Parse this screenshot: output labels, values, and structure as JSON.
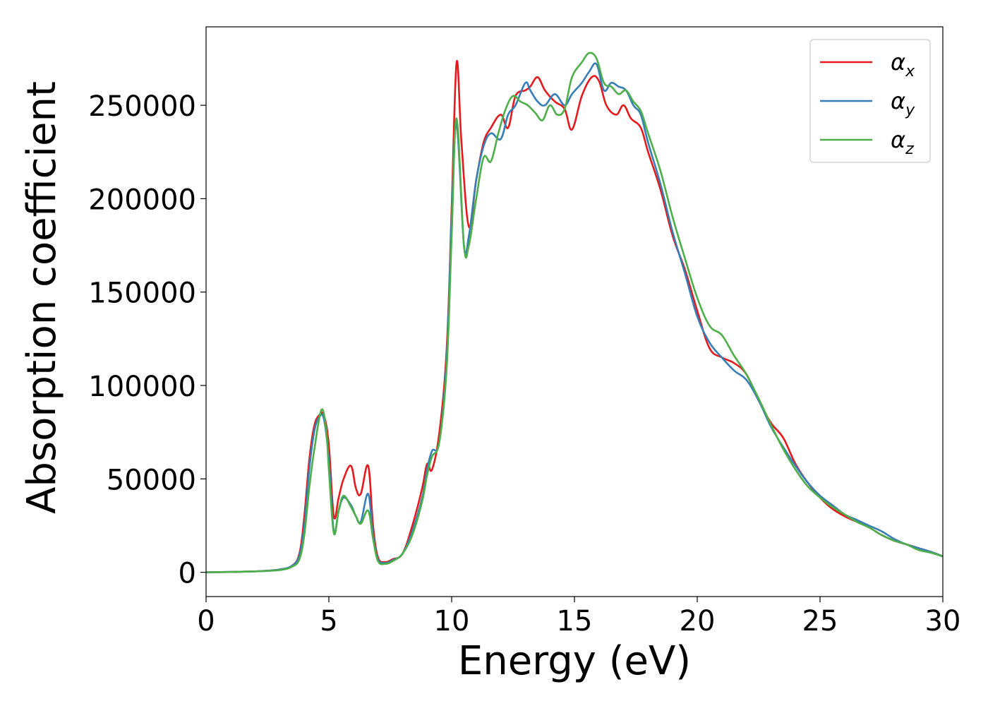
{
  "chart_data": {
    "type": "line",
    "title": "",
    "xlabel": "Energy (eV)",
    "ylabel": "Absorption coefficient",
    "xlim": [
      0,
      30
    ],
    "ylim": [
      -13000,
      292000
    ],
    "xticks": [
      0,
      5,
      10,
      15,
      20,
      25,
      30
    ],
    "xtick_labels": [
      "0",
      "5",
      "10",
      "15",
      "20",
      "25",
      "30"
    ],
    "yticks": [
      0,
      50000,
      100000,
      150000,
      200000,
      250000
    ],
    "ytick_labels": [
      "0",
      "50000",
      "100000",
      "150000",
      "200000",
      "250000"
    ],
    "grid": false,
    "legend_position": "top-right",
    "series": [
      {
        "name": "α_x",
        "label_main": "α",
        "label_sub": "x",
        "color": "#e41a1c",
        "x": [
          0,
          2,
          3,
          3.5,
          3.8,
          4.0,
          4.2,
          4.4,
          4.6,
          4.8,
          5.0,
          5.2,
          5.4,
          5.6,
          5.9,
          6.1,
          6.3,
          6.6,
          6.8,
          7.0,
          7.3,
          7.6,
          8.0,
          8.4,
          8.8,
          9.0,
          9.2,
          9.5,
          9.8,
          10.0,
          10.2,
          10.4,
          10.7,
          11.0,
          11.3,
          11.6,
          12.0,
          12.3,
          12.6,
          13.0,
          13.2,
          13.5,
          13.8,
          14.2,
          14.6,
          14.9,
          15.3,
          15.7,
          16.0,
          16.3,
          16.7,
          17.0,
          17.3,
          17.7,
          18.0,
          18.5,
          19.0,
          19.5,
          20.0,
          20.5,
          21.0,
          21.5,
          22.0,
          22.5,
          23.0,
          23.5,
          24.0,
          24.5,
          25.0,
          25.5,
          26.0,
          26.5,
          27.0,
          27.5,
          28.0,
          28.5,
          29.0,
          29.5,
          30.0
        ],
        "y": [
          0,
          500,
          1500,
          3500,
          10000,
          30000,
          60000,
          78000,
          84000,
          84000,
          68000,
          30000,
          40000,
          50000,
          57000,
          45000,
          42000,
          57000,
          25000,
          8000,
          5500,
          7000,
          10000,
          25000,
          45000,
          58000,
          55000,
          75000,
          120000,
          195000,
          273000,
          230000,
          185000,
          210000,
          230000,
          238000,
          245000,
          238000,
          255000,
          258000,
          260000,
          265000,
          258000,
          252000,
          248000,
          237000,
          255000,
          265000,
          263000,
          250000,
          245000,
          250000,
          243000,
          238000,
          225000,
          205000,
          180000,
          162000,
          140000,
          120000,
          115000,
          112000,
          106000,
          92000,
          80000,
          72000,
          58000,
          48000,
          40000,
          34000,
          30000,
          27000,
          24000,
          20000,
          17000,
          15000,
          13000,
          11000,
          8500
        ]
      },
      {
        "name": "α_y",
        "label_main": "α",
        "label_sub": "y",
        "color": "#377eb8",
        "x": [
          0,
          2,
          3,
          3.5,
          3.8,
          4.0,
          4.2,
          4.4,
          4.6,
          4.8,
          5.0,
          5.2,
          5.4,
          5.6,
          5.9,
          6.1,
          6.3,
          6.6,
          6.8,
          7.0,
          7.3,
          7.6,
          8.0,
          8.4,
          8.8,
          9.0,
          9.2,
          9.5,
          9.8,
          10.0,
          10.2,
          10.5,
          10.7,
          11.0,
          11.3,
          11.6,
          12.0,
          12.3,
          12.6,
          13.0,
          13.2,
          13.5,
          13.8,
          14.2,
          14.6,
          14.9,
          15.3,
          15.6,
          15.9,
          16.2,
          16.5,
          16.8,
          17.1,
          17.4,
          17.7,
          18.0,
          18.5,
          19.0,
          19.5,
          20.0,
          20.5,
          21.0,
          21.5,
          22.0,
          22.5,
          23.0,
          23.5,
          24.0,
          24.5,
          25.0,
          25.5,
          26.0,
          26.5,
          27.0,
          27.5,
          28.0,
          28.5,
          29.0,
          29.5,
          30.0
        ],
        "y": [
          0,
          500,
          1500,
          3500,
          9000,
          25000,
          55000,
          75000,
          83000,
          82000,
          60000,
          22000,
          33000,
          40000,
          36000,
          30000,
          27000,
          42000,
          20000,
          7000,
          5000,
          6500,
          10000,
          22000,
          40000,
          55000,
          65000,
          70000,
          115000,
          190000,
          240000,
          175000,
          180000,
          210000,
          228000,
          235000,
          232000,
          245000,
          250000,
          262000,
          258000,
          252000,
          250000,
          256000,
          250000,
          256000,
          262000,
          268000,
          272000,
          258000,
          262000,
          260000,
          258000,
          250000,
          245000,
          230000,
          208000,
          182000,
          160000,
          137000,
          123000,
          115000,
          108000,
          103000,
          92000,
          78000,
          67000,
          57000,
          48000,
          41000,
          36000,
          31000,
          28000,
          25000,
          22000,
          18000,
          15000,
          13000,
          11000,
          8500
        ]
      },
      {
        "name": "α_z",
        "label_main": "α",
        "label_sub": "z",
        "color": "#4daf4a",
        "x": [
          0,
          2,
          3,
          3.5,
          3.8,
          4.0,
          4.2,
          4.4,
          4.7,
          4.9,
          5.0,
          5.2,
          5.4,
          5.6,
          5.9,
          6.1,
          6.3,
          6.6,
          6.8,
          7.0,
          7.3,
          7.6,
          8.0,
          8.4,
          8.8,
          9.0,
          9.2,
          9.5,
          9.8,
          10.0,
          10.2,
          10.5,
          10.7,
          11.0,
          11.3,
          11.6,
          11.9,
          12.2,
          12.5,
          12.8,
          13.1,
          13.4,
          13.7,
          14.0,
          14.3,
          14.6,
          14.9,
          15.3,
          15.6,
          15.9,
          16.2,
          16.5,
          16.8,
          17.1,
          17.4,
          17.7,
          18.0,
          18.5,
          19.0,
          19.5,
          20.0,
          20.5,
          21.0,
          21.5,
          22.0,
          22.5,
          23.0,
          23.5,
          24.0,
          24.5,
          25.0,
          25.5,
          26.0,
          26.5,
          27.0,
          27.5,
          28.0,
          28.5,
          29.0,
          29.5,
          30.0
        ],
        "y": [
          0,
          500,
          1200,
          3000,
          7000,
          20000,
          45000,
          65000,
          87000,
          75000,
          55000,
          21000,
          33000,
          41000,
          35000,
          30000,
          26000,
          33000,
          18000,
          6000,
          4500,
          6000,
          10000,
          20000,
          38000,
          52000,
          62000,
          70000,
          110000,
          180000,
          243000,
          175000,
          175000,
          200000,
          222000,
          220000,
          235000,
          248000,
          255000,
          252000,
          250000,
          246000,
          242000,
          250000,
          245000,
          248000,
          265000,
          273000,
          278000,
          275000,
          262000,
          260000,
          256000,
          258000,
          252000,
          247000,
          235000,
          215000,
          190000,
          168000,
          147000,
          132000,
          127000,
          116000,
          106000,
          93000,
          79000,
          66000,
          55000,
          46000,
          40000,
          35000,
          31000,
          27000,
          24000,
          20000,
          17000,
          15000,
          12000,
          10500,
          8500
        ]
      }
    ]
  }
}
